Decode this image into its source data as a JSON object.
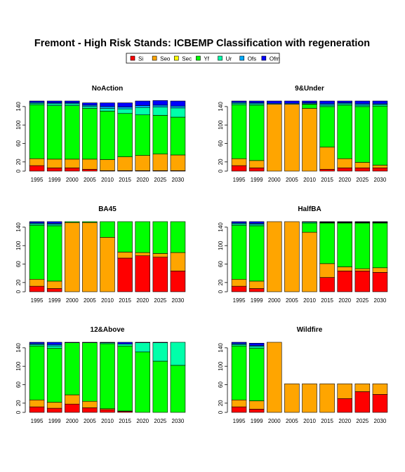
{
  "title": "Fremont  - High Risk Stands: ICBEMP Classification with regeneration",
  "legend": {
    "entries": [
      {
        "label": "Si",
        "color": "#ff0000"
      },
      {
        "label": "Seo",
        "color": "#ffa500"
      },
      {
        "label": "Sec",
        "color": "#ffff00"
      },
      {
        "label": "Yf",
        "color": "#00ff00"
      },
      {
        "label": "Ur",
        "color": "#00ffaa"
      },
      {
        "label": "Ofs",
        "color": "#00aaff"
      },
      {
        "label": "Ofm",
        "color": "#0000ff"
      }
    ]
  },
  "chart_data": [
    {
      "type": "bar",
      "title": "NoAction",
      "categories": [
        "1995",
        "1999",
        "2000",
        "2005",
        "2010",
        "2015",
        "2020",
        "2025",
        "2030"
      ],
      "yticks": [
        0,
        20,
        60,
        100,
        140
      ],
      "ylim": [
        0,
        152
      ],
      "series": [
        {
          "name": "Si",
          "values": [
            12,
            7,
            7,
            4,
            1,
            1,
            1,
            1,
            1
          ]
        },
        {
          "name": "Seo",
          "values": [
            15,
            19,
            19,
            22,
            24,
            30,
            33,
            36,
            34
          ]
        },
        {
          "name": "Sec",
          "values": [
            0,
            0,
            0,
            0,
            0,
            0,
            0,
            0,
            0
          ]
        },
        {
          "name": "Yf",
          "values": [
            117,
            116,
            116,
            110,
            105,
            94,
            88,
            84,
            82
          ]
        },
        {
          "name": "Ur",
          "values": [
            3,
            4,
            4,
            4,
            6,
            10,
            16,
            18,
            20
          ]
        },
        {
          "name": "Ofs",
          "values": [
            2,
            2,
            2,
            3,
            4,
            4,
            4,
            4,
            4
          ]
        },
        {
          "name": "Ofm",
          "values": [
            3,
            4,
            4,
            5,
            8,
            9,
            10,
            10,
            11
          ]
        }
      ]
    },
    {
      "type": "bar",
      "title": "9&Under",
      "categories": [
        "1995",
        "1999",
        "2000",
        "2005",
        "2010",
        "2015",
        "2020",
        "2025",
        "2030"
      ],
      "yticks": [
        0,
        20,
        60,
        100,
        140
      ],
      "ylim": [
        0,
        152
      ],
      "series": [
        {
          "name": "Si",
          "values": [
            12,
            7,
            0,
            0,
            0,
            4,
            7,
            7,
            7
          ]
        },
        {
          "name": "Seo",
          "values": [
            15,
            16,
            145,
            145,
            136,
            48,
            20,
            12,
            6
          ]
        },
        {
          "name": "Sec",
          "values": [
            0,
            0,
            0,
            0,
            0,
            0,
            0,
            0,
            0
          ]
        },
        {
          "name": "Yf",
          "values": [
            117,
            120,
            0,
            0,
            9,
            88,
            116,
            121,
            128
          ]
        },
        {
          "name": "Ur",
          "values": [
            3,
            3,
            0,
            0,
            1,
            3,
            3,
            3,
            3
          ]
        },
        {
          "name": "Ofs",
          "values": [
            2,
            2,
            2,
            2,
            2,
            3,
            2,
            3,
            2
          ]
        },
        {
          "name": "Ofm",
          "values": [
            3,
            4,
            5,
            5,
            4,
            6,
            4,
            6,
            6
          ]
        }
      ]
    },
    {
      "type": "bar",
      "title": "BA45",
      "categories": [
        "1995",
        "1999",
        "2000",
        "2005",
        "2010",
        "2015",
        "2020",
        "2025",
        "2030"
      ],
      "yticks": [
        0,
        20,
        60,
        100,
        140
      ],
      "ylim": [
        0,
        152
      ],
      "series": [
        {
          "name": "Si",
          "values": [
            12,
            7,
            0,
            0,
            0,
            73,
            78,
            75,
            45
          ]
        },
        {
          "name": "Seo",
          "values": [
            15,
            16,
            150,
            150,
            118,
            13,
            7,
            8,
            40
          ]
        },
        {
          "name": "Sec",
          "values": [
            0,
            0,
            0,
            0,
            0,
            0,
            0,
            0,
            0
          ]
        },
        {
          "name": "Yf",
          "values": [
            117,
            120,
            2,
            2,
            34,
            66,
            67,
            69,
            67
          ]
        },
        {
          "name": "Ur",
          "values": [
            3,
            3,
            0,
            0,
            0,
            0,
            0,
            0,
            0
          ]
        },
        {
          "name": "Ofs",
          "values": [
            2,
            2,
            0,
            0,
            0,
            0,
            0,
            0,
            0
          ]
        },
        {
          "name": "Ofm",
          "values": [
            3,
            4,
            0,
            0,
            0,
            0,
            0,
            0,
            0
          ]
        }
      ]
    },
    {
      "type": "bar",
      "title": "HalfBA",
      "categories": [
        "1995",
        "1999",
        "2000",
        "2005",
        "2010",
        "2015",
        "2020",
        "2025",
        "2030"
      ],
      "yticks": [
        0,
        20,
        60,
        100,
        140
      ],
      "ylim": [
        0,
        152
      ],
      "series": [
        {
          "name": "Si",
          "values": [
            12,
            7,
            0,
            0,
            0,
            31,
            45,
            45,
            42
          ]
        },
        {
          "name": "Seo",
          "values": [
            15,
            16,
            152,
            152,
            129,
            30,
            9,
            5,
            10
          ]
        },
        {
          "name": "Sec",
          "values": [
            0,
            0,
            0,
            0,
            0,
            0,
            0,
            0,
            0
          ]
        },
        {
          "name": "Yf",
          "values": [
            117,
            120,
            0,
            0,
            20,
            88,
            95,
            99,
            97
          ]
        },
        {
          "name": "Ur",
          "values": [
            3,
            3,
            0,
            0,
            2,
            1,
            1,
            1,
            1
          ]
        },
        {
          "name": "Ofs",
          "values": [
            2,
            2,
            0,
            0,
            1,
            1,
            1,
            1,
            1
          ]
        },
        {
          "name": "Ofm",
          "values": [
            3,
            4,
            0,
            0,
            0,
            1,
            1,
            1,
            1
          ]
        }
      ]
    },
    {
      "type": "bar",
      "title": "12&Above",
      "categories": [
        "1995",
        "1999",
        "2000",
        "2005",
        "2010",
        "2015",
        "2020",
        "2025",
        "2030"
      ],
      "yticks": [
        0,
        20,
        60,
        100,
        140
      ],
      "ylim": [
        0,
        152
      ],
      "series": [
        {
          "name": "Si",
          "values": [
            12,
            9,
            18,
            10,
            6,
            2,
            0,
            0,
            0
          ]
        },
        {
          "name": "Seo",
          "values": [
            15,
            13,
            20,
            14,
            2,
            1,
            0,
            0,
            0
          ]
        },
        {
          "name": "Sec",
          "values": [
            0,
            0,
            0,
            0,
            0,
            0,
            0,
            0,
            0
          ]
        },
        {
          "name": "Yf",
          "values": [
            117,
            117,
            113,
            127,
            141,
            141,
            131,
            111,
            102
          ]
        },
        {
          "name": "Ur",
          "values": [
            3,
            5,
            0,
            0,
            2,
            4,
            20,
            40,
            50
          ]
        },
        {
          "name": "Ofs",
          "values": [
            2,
            3,
            0,
            0,
            0,
            0,
            0,
            0,
            0
          ]
        },
        {
          "name": "Ofm",
          "values": [
            3,
            5,
            1,
            1,
            1,
            4,
            1,
            1,
            0
          ]
        }
      ]
    },
    {
      "type": "bar",
      "title": "Wildfire",
      "categories": [
        "1995",
        "1999",
        "2000",
        "2005",
        "2010",
        "2015",
        "2020",
        "2025",
        "2030"
      ],
      "yticks": [
        0,
        20,
        60,
        100,
        140
      ],
      "ylim": [
        0,
        152
      ],
      "series": [
        {
          "name": "Si",
          "values": [
            12,
            7,
            0,
            0,
            0,
            0,
            30,
            45,
            39
          ]
        },
        {
          "name": "Seo",
          "values": [
            15,
            18,
            152,
            62,
            62,
            62,
            32,
            17,
            23
          ]
        },
        {
          "name": "Sec",
          "values": [
            0,
            0,
            0,
            0,
            0,
            0,
            0,
            0,
            0
          ]
        },
        {
          "name": "Yf",
          "values": [
            117,
            114,
            0,
            0,
            0,
            0,
            0,
            0,
            0
          ]
        },
        {
          "name": "Ur",
          "values": [
            3,
            4,
            0,
            0,
            0,
            0,
            0,
            0,
            0
          ]
        },
        {
          "name": "Ofs",
          "values": [
            2,
            2,
            0,
            0,
            0,
            0,
            0,
            0,
            0
          ]
        },
        {
          "name": "Ofm",
          "values": [
            3,
            5,
            0,
            0,
            0,
            0,
            0,
            0,
            0
          ]
        }
      ]
    }
  ]
}
